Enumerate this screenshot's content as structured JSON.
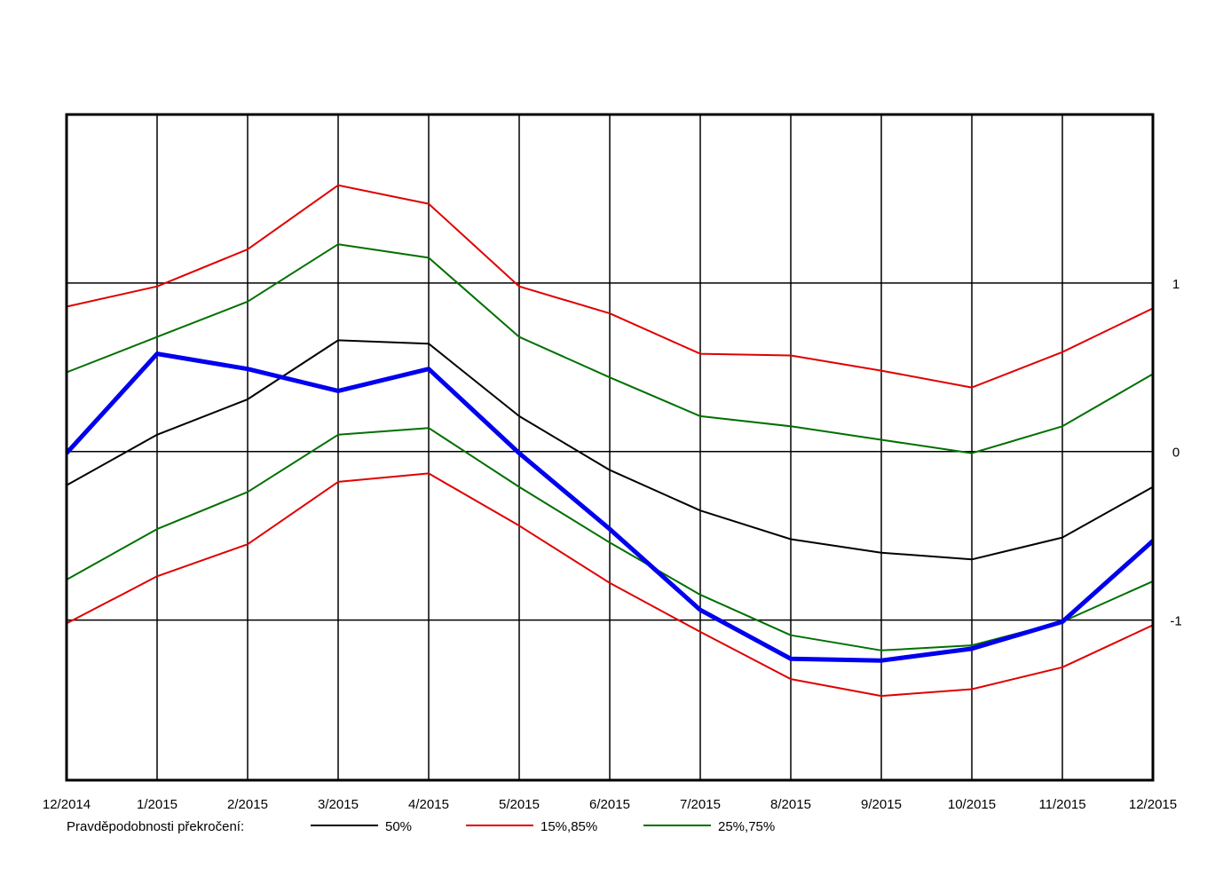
{
  "chart_data": {
    "type": "line",
    "categories": [
      "12/2014",
      "1/2015",
      "2/2015",
      "3/2015",
      "4/2015",
      "5/2015",
      "6/2015",
      "7/2015",
      "8/2015",
      "9/2015",
      "10/2015",
      "11/2015",
      "12/2015"
    ],
    "ylim": [
      -1.95,
      2.0
    ],
    "yticks": [
      1,
      0,
      -1
    ],
    "ytick_labels": [
      "1",
      "0",
      "-1"
    ],
    "grid": true,
    "legend_label": "Pravděpodobnosti překročení:",
    "legend_position": "bottom",
    "series": [
      {
        "name": "upper_15",
        "color": "#e00000",
        "width": 2,
        "values": [
          0.86,
          0.98,
          1.2,
          1.58,
          1.47,
          0.98,
          0.82,
          0.58,
          0.57,
          0.48,
          0.38,
          0.59,
          0.85
        ]
      },
      {
        "name": "upper_25",
        "color": "#007000",
        "width": 2,
        "values": [
          0.47,
          0.68,
          0.89,
          1.23,
          1.15,
          0.68,
          0.44,
          0.21,
          0.15,
          0.07,
          -0.01,
          0.15,
          0.46
        ]
      },
      {
        "name": "median",
        "color": "#000000",
        "width": 2,
        "values": [
          -0.2,
          0.1,
          0.31,
          0.66,
          0.64,
          0.21,
          -0.11,
          -0.35,
          -0.52,
          -0.6,
          -0.64,
          -0.51,
          -0.21
        ]
      },
      {
        "name": "lower_25",
        "color": "#007000",
        "width": 2,
        "values": [
          -0.76,
          -0.46,
          -0.24,
          0.1,
          0.14,
          -0.21,
          -0.54,
          -0.85,
          -1.09,
          -1.18,
          -1.15,
          -1.01,
          -0.77
        ]
      },
      {
        "name": "lower_15",
        "color": "#e00000",
        "width": 2,
        "values": [
          -1.02,
          -0.74,
          -0.55,
          -0.18,
          -0.13,
          -0.44,
          -0.78,
          -1.07,
          -1.35,
          -1.45,
          -1.41,
          -1.28,
          -1.03
        ]
      },
      {
        "name": "actual",
        "color": "#0000ee",
        "width": 5,
        "values": [
          -0.01,
          0.58,
          0.49,
          0.36,
          0.49,
          -0.01,
          -0.46,
          -0.94,
          -1.23,
          -1.24,
          -1.17,
          -1.01,
          -0.53
        ]
      }
    ],
    "legend": [
      {
        "label": "50%",
        "color": "#000000"
      },
      {
        "label": "15%,85%",
        "color": "#e00000"
      },
      {
        "label": "25%,75%",
        "color": "#007000"
      }
    ]
  }
}
